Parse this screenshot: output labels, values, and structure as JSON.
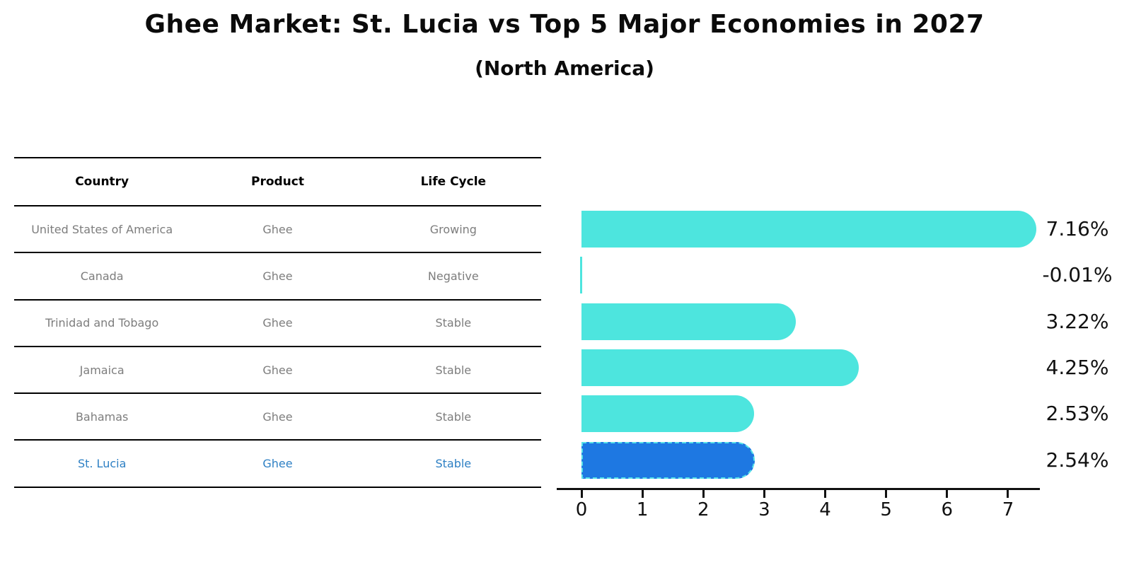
{
  "page": {
    "title": "Ghee Market: St. Lucia vs Top 5 Major Economies in 2027",
    "subtitle": "(North America)"
  },
  "table": {
    "headers": [
      "Country",
      "Product",
      "Life Cycle"
    ],
    "rows": [
      {
        "country": "United States of America",
        "product": "Ghee",
        "life_cycle": "Growing",
        "highlight": false
      },
      {
        "country": "Canada",
        "product": "Ghee",
        "life_cycle": "Negative",
        "highlight": false
      },
      {
        "country": "Trinidad and Tobago",
        "product": "Ghee",
        "life_cycle": "Stable",
        "highlight": false
      },
      {
        "country": "Jamaica",
        "product": "Ghee",
        "life_cycle": "Stable",
        "highlight": false
      },
      {
        "country": "Bahamas",
        "product": "Ghee",
        "life_cycle": "Stable",
        "highlight": false
      },
      {
        "country": "St. Lucia",
        "product": "Ghee",
        "life_cycle": "Stable",
        "highlight": true
      }
    ]
  },
  "chart_data": {
    "type": "bar",
    "orientation": "horizontal",
    "title": "Ghee Market: St. Lucia vs Top 5 Major Economies in 2027 (North America)",
    "categories": [
      "United States of America",
      "Canada",
      "Trinidad and Tobago",
      "Jamaica",
      "Bahamas",
      "St. Lucia"
    ],
    "values": [
      7.16,
      -0.01,
      3.22,
      4.25,
      2.53,
      2.54
    ],
    "value_labels": [
      "7.16%",
      "-0.01%",
      "3.22%",
      "4.25%",
      "2.53%",
      "2.54%"
    ],
    "unit": "%",
    "xlim": [
      0,
      7.5
    ],
    "xticks": [
      0,
      1,
      2,
      3,
      4,
      5,
      6,
      7
    ],
    "grid": false,
    "legend": false,
    "highlight_index": 5,
    "bar_color": "#4DE5DE",
    "highlight_bar_color": "#1E78E2",
    "highlight_border_color": "#56E2E8",
    "highlight_text_color": "#2E80C4",
    "value_label_color": "#111111"
  },
  "colors": {
    "background": "#FFFFFF",
    "table_line": "#000000",
    "header_text": "#000000",
    "row_text": "#7D7D7D"
  }
}
